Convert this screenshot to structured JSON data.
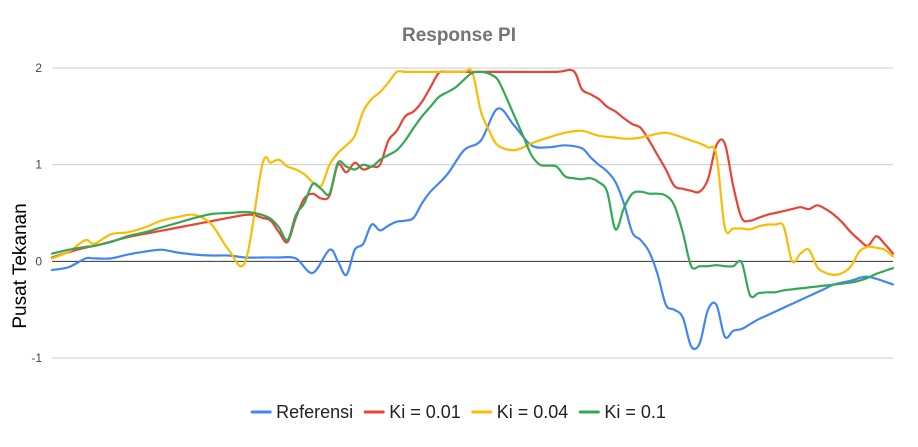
{
  "chart_data": {
    "type": "line",
    "title": "Response PI",
    "xlabel": "",
    "ylabel": "Pusat Tekanan",
    "ylim": [
      -1,
      2
    ],
    "yticks": [
      2,
      1,
      0,
      -1
    ],
    "xlim": [
      0,
      100
    ],
    "grid": true,
    "legend_position": "bottom",
    "series": [
      {
        "name": "Referensi",
        "color": "#4285F4",
        "x": [
          0,
          2,
          4,
          5,
          7,
          9,
          11,
          13,
          15,
          17,
          19,
          21,
          23,
          25,
          27,
          29,
          31,
          33,
          34,
          35,
          36,
          37,
          38,
          39,
          40,
          41,
          42,
          43,
          44,
          45,
          47,
          49,
          51,
          53,
          55,
          57,
          59,
          61,
          63,
          64,
          65,
          66,
          67,
          68,
          69,
          70,
          71,
          72,
          73,
          74,
          75,
          76,
          77,
          78,
          79,
          80,
          81,
          82,
          83,
          84,
          85,
          86,
          87,
          88,
          89,
          90,
          91,
          92,
          93,
          95,
          97,
          100
        ],
        "values": [
          -0.09,
          -0.06,
          0.03,
          0.03,
          0.03,
          0.07,
          0.1,
          0.12,
          0.09,
          0.07,
          0.06,
          0.06,
          0.04,
          0.04,
          0.04,
          0.03,
          -0.12,
          0.12,
          0.0,
          -0.14,
          0.12,
          0.18,
          0.38,
          0.32,
          0.37,
          0.41,
          0.42,
          0.45,
          0.6,
          0.72,
          0.9,
          1.15,
          1.25,
          1.58,
          1.4,
          1.2,
          1.18,
          1.2,
          1.17,
          1.08,
          1.0,
          0.93,
          0.82,
          0.6,
          0.3,
          0.22,
          0.1,
          -0.13,
          -0.45,
          -0.5,
          -0.58,
          -0.88,
          -0.85,
          -0.5,
          -0.45,
          -0.78,
          -0.72,
          -0.7,
          -0.65,
          -0.6,
          -0.56,
          -0.52,
          -0.48,
          -0.44,
          -0.4,
          -0.36,
          -0.32,
          -0.28,
          -0.24,
          -0.2,
          -0.16,
          -0.24
        ]
      },
      {
        "name": "Ki = 0.01",
        "color": "#EA4335",
        "x": [
          0,
          3,
          6,
          9,
          12,
          15,
          18,
          21,
          23,
          24,
          25,
          26,
          27,
          28,
          29,
          30,
          31,
          32,
          33,
          34,
          35,
          36,
          37,
          38,
          39,
          40,
          41,
          42,
          43,
          44,
          45,
          46,
          47,
          48,
          49,
          50,
          52,
          55,
          60,
          62,
          63,
          64,
          65,
          66,
          67,
          68,
          69,
          70,
          71,
          72,
          73,
          74,
          75,
          76,
          77,
          78,
          79,
          80,
          81,
          82,
          83,
          84,
          85,
          86,
          87,
          88,
          89,
          90,
          91,
          92,
          93,
          94,
          95,
          96,
          97,
          98,
          99,
          100
        ],
        "values": [
          0.04,
          0.12,
          0.18,
          0.25,
          0.3,
          0.35,
          0.4,
          0.45,
          0.48,
          0.48,
          0.45,
          0.42,
          0.3,
          0.2,
          0.45,
          0.65,
          0.7,
          0.65,
          0.68,
          1.0,
          0.92,
          1.02,
          0.95,
          0.98,
          1.0,
          1.25,
          1.35,
          1.5,
          1.55,
          1.65,
          1.8,
          1.95,
          1.96,
          1.96,
          1.96,
          1.96,
          1.96,
          1.96,
          1.96,
          1.97,
          1.78,
          1.73,
          1.68,
          1.6,
          1.55,
          1.48,
          1.42,
          1.38,
          1.25,
          1.1,
          0.95,
          0.78,
          0.75,
          0.73,
          0.72,
          0.85,
          1.2,
          1.22,
          0.78,
          0.45,
          0.42,
          0.45,
          0.48,
          0.5,
          0.52,
          0.54,
          0.56,
          0.54,
          0.58,
          0.54,
          0.48,
          0.4,
          0.3,
          0.22,
          0.16,
          0.26,
          0.18,
          0.08
        ]
      },
      {
        "name": "Ki = 0.04",
        "color": "#FBBC04",
        "x": [
          0,
          2,
          4,
          5,
          7,
          9,
          11,
          13,
          15,
          17,
          19,
          21,
          23,
          25,
          26,
          27,
          28,
          29,
          30,
          31,
          32,
          33,
          34,
          35,
          36,
          37,
          38,
          39,
          40,
          41,
          42,
          43,
          44,
          45,
          46,
          47,
          48,
          49,
          50,
          51,
          52,
          53,
          55,
          57,
          59,
          61,
          63,
          65,
          67,
          68,
          69,
          70,
          71,
          72,
          73,
          74,
          75,
          76,
          77,
          78,
          79,
          80,
          81,
          82,
          83,
          84,
          85,
          86,
          87,
          88,
          89,
          90,
          91,
          92,
          93,
          94,
          95,
          96,
          97,
          98,
          99,
          100
        ],
        "values": [
          0.03,
          0.1,
          0.22,
          0.18,
          0.28,
          0.3,
          0.35,
          0.42,
          0.46,
          0.48,
          0.38,
          0.12,
          0.0,
          1.0,
          1.02,
          1.05,
          0.98,
          0.95,
          0.9,
          0.82,
          0.78,
          1.0,
          1.12,
          1.2,
          1.3,
          1.55,
          1.68,
          1.75,
          1.85,
          1.96,
          1.96,
          1.96,
          1.96,
          1.96,
          1.96,
          1.96,
          1.96,
          1.96,
          1.95,
          1.55,
          1.35,
          1.2,
          1.15,
          1.22,
          1.28,
          1.33,
          1.35,
          1.3,
          1.28,
          1.27,
          1.27,
          1.28,
          1.3,
          1.32,
          1.33,
          1.31,
          1.28,
          1.25,
          1.22,
          1.18,
          1.1,
          0.35,
          0.34,
          0.34,
          0.33,
          0.36,
          0.38,
          0.38,
          0.36,
          0.0,
          0.08,
          0.12,
          -0.06,
          -0.12,
          -0.14,
          -0.12,
          -0.05,
          0.1,
          0.15,
          0.14,
          0.12,
          0.05
        ]
      },
      {
        "name": "Ki = 0.1",
        "color": "#34A853",
        "x": [
          0,
          2,
          4,
          5,
          7,
          9,
          11,
          13,
          15,
          17,
          19,
          21,
          23,
          24,
          25,
          26,
          27,
          28,
          29,
          30,
          31,
          32,
          33,
          34,
          35,
          36,
          37,
          38,
          39,
          40,
          41,
          42,
          43,
          44,
          45,
          46,
          47,
          48,
          49,
          50,
          51,
          52,
          53,
          54,
          55,
          56,
          57,
          58,
          59,
          60,
          61,
          62,
          63,
          64,
          65,
          66,
          67,
          68,
          69,
          70,
          71,
          72,
          73,
          74,
          75,
          76,
          77,
          78,
          79,
          80,
          81,
          82,
          83,
          84,
          85,
          86,
          87,
          88,
          89,
          90,
          91,
          92,
          93,
          94,
          95,
          96,
          97,
          98,
          99,
          100
        ],
        "values": [
          0.08,
          0.12,
          0.15,
          0.16,
          0.2,
          0.26,
          0.3,
          0.35,
          0.4,
          0.45,
          0.49,
          0.5,
          0.51,
          0.5,
          0.48,
          0.44,
          0.35,
          0.22,
          0.48,
          0.6,
          0.8,
          0.75,
          0.7,
          1.02,
          0.98,
          0.95,
          1.0,
          0.98,
          1.05,
          1.1,
          1.15,
          1.25,
          1.38,
          1.5,
          1.6,
          1.7,
          1.75,
          1.8,
          1.88,
          1.95,
          1.96,
          1.94,
          1.88,
          1.7,
          1.5,
          1.3,
          1.1,
          1.0,
          0.99,
          0.98,
          0.88,
          0.86,
          0.85,
          0.86,
          0.82,
          0.72,
          0.33,
          0.55,
          0.7,
          0.72,
          0.7,
          0.7,
          0.68,
          0.58,
          0.3,
          -0.05,
          -0.05,
          -0.05,
          -0.04,
          -0.05,
          -0.05,
          -0.01,
          -0.35,
          -0.33,
          -0.32,
          -0.32,
          -0.3,
          -0.29,
          -0.28,
          -0.27,
          -0.26,
          -0.25,
          -0.24,
          -0.23,
          -0.22,
          -0.2,
          -0.17,
          -0.13,
          -0.1,
          -0.07
        ]
      }
    ]
  }
}
